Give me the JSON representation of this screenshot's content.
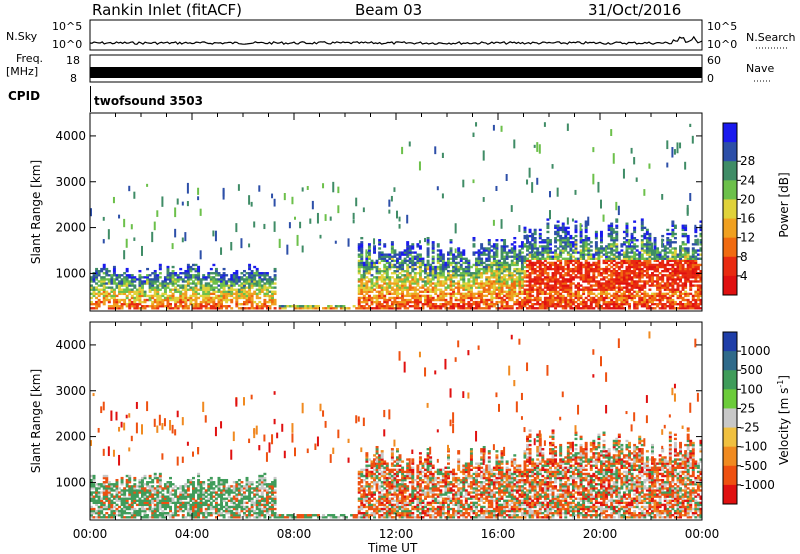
{
  "header": {
    "station": "Rankin Inlet (fitACF)",
    "beam": "Beam 03",
    "date": "31/Oct/2016"
  },
  "strips": {
    "nsky_label": "N.Sky",
    "nsky_ticks": [
      "10^5",
      "10^0"
    ],
    "nsearch_label": "N.Search",
    "nsearch_ticks": [
      "10^5",
      "10^0"
    ],
    "freq_label": "Freq.",
    "freq_unit": "[MHz]",
    "freq_ticks": [
      "18",
      "8"
    ],
    "nave_label": "Nave",
    "nave_ticks": [
      "60",
      "0"
    ],
    "cpid_label": "CPID",
    "cpid_value": "twofsound 3503"
  },
  "chart_data": [
    {
      "type": "heatmap",
      "name_panel": "power",
      "ylabel": "Slant Range [km]",
      "ylim": [
        180,
        4500
      ],
      "yticks": [
        1000,
        2000,
        3000,
        4000
      ],
      "xlim_hours": [
        0,
        24
      ],
      "xticks": [
        "00:00",
        "04:00",
        "08:00",
        "12:00",
        "16:00",
        "20:00",
        "00:00"
      ],
      "colorbar": {
        "label": "Power [dB]",
        "ticks": [
          "4",
          "8",
          "12",
          "16",
          "20",
          "24",
          "28"
        ],
        "colors": [
          "#1a1aee",
          "#2d4fa8",
          "#3f8c66",
          "#6cc04a",
          "#e0d23a",
          "#f0a020",
          "#f06a10",
          "#e82a10",
          "#e01010"
        ]
      }
    },
    {
      "type": "heatmap",
      "name_panel": "velocity",
      "ylabel": "Slant Range [km]",
      "xlabel": "Time UT",
      "ylim": [
        180,
        4500
      ],
      "yticks": [
        1000,
        2000,
        3000,
        4000
      ],
      "xlim_hours": [
        0,
        24
      ],
      "xticks": [
        "00:00",
        "04:00",
        "08:00",
        "12:00",
        "16:00",
        "20:00",
        "00:00"
      ],
      "colorbar": {
        "label": "Velocity [m s^-1]",
        "ticks": [
          "1000",
          "500",
          "100",
          "25",
          "-25",
          "-100",
          "-500",
          "-1000"
        ],
        "colors": [
          "#1f3ea8",
          "#2f6a8a",
          "#3f9c5a",
          "#6ccc3a",
          "#c8c8c8",
          "#f0c040",
          "#f08a20",
          "#ee5010",
          "#e01010"
        ]
      }
    }
  ]
}
